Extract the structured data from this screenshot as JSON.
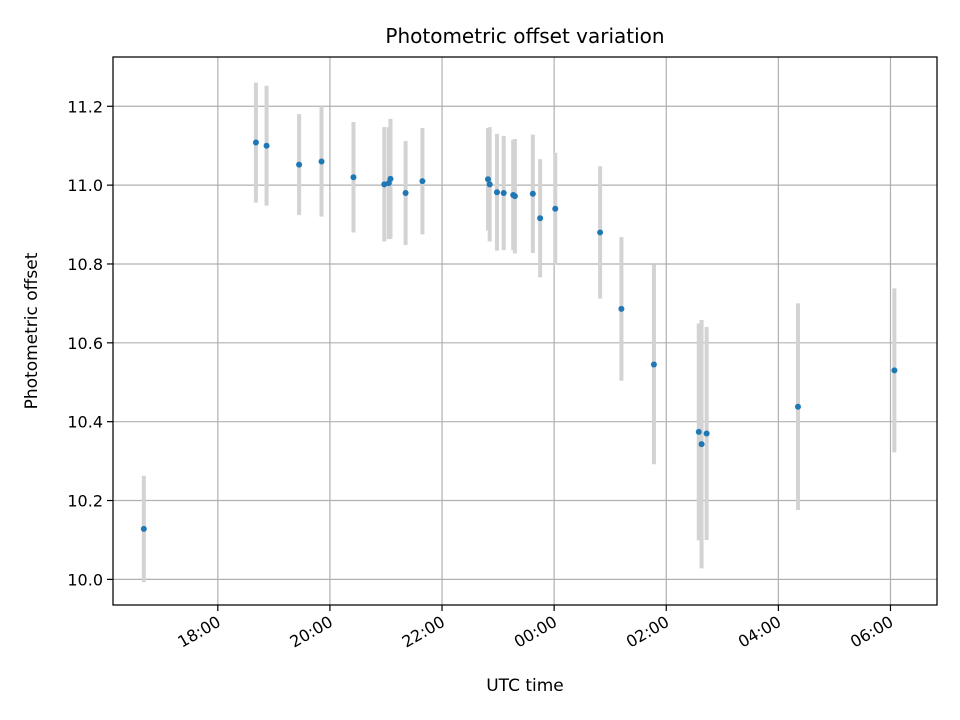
{
  "chart_data": {
    "type": "scatter",
    "title": "Photometric offset variation",
    "xlabel": "UTC time",
    "ylabel": "Photometric offset",
    "x_axis_kind": "time (hours, rolls past midnight)",
    "xlim": [
      16.13,
      30.83
    ],
    "ylim": [
      9.935,
      11.325
    ],
    "grid": true,
    "x_ticks": [
      {
        "value": 18,
        "label": "18:00"
      },
      {
        "value": 20,
        "label": "20:00"
      },
      {
        "value": 22,
        "label": "22:00"
      },
      {
        "value": 24,
        "label": "00:00"
      },
      {
        "value": 26,
        "label": "02:00"
      },
      {
        "value": 28,
        "label": "04:00"
      },
      {
        "value": 30,
        "label": "06:00"
      }
    ],
    "y_ticks": [
      10.0,
      10.2,
      10.4,
      10.6,
      10.8,
      11.0,
      11.2
    ],
    "y_tick_labels": [
      "10.0",
      "10.2",
      "10.4",
      "10.6",
      "10.8",
      "11.0",
      "11.2"
    ],
    "point_color": "#1f77b4",
    "errorbar_color": "#d3d3d3",
    "points": [
      {
        "x": 16.68,
        "y": 10.128,
        "err": 0.135
      },
      {
        "x": 18.68,
        "y": 11.108,
        "err": 0.152
      },
      {
        "x": 18.87,
        "y": 11.1,
        "err": 0.152
      },
      {
        "x": 19.45,
        "y": 11.052,
        "err": 0.128
      },
      {
        "x": 19.85,
        "y": 11.06,
        "err": 0.14
      },
      {
        "x": 20.42,
        "y": 11.02,
        "err": 0.14
      },
      {
        "x": 20.97,
        "y": 11.002,
        "err": 0.145
      },
      {
        "x": 21.05,
        "y": 11.005,
        "err": 0.142
      },
      {
        "x": 21.08,
        "y": 11.016,
        "err": 0.152
      },
      {
        "x": 21.35,
        "y": 10.98,
        "err": 0.132
      },
      {
        "x": 21.65,
        "y": 11.01,
        "err": 0.135
      },
      {
        "x": 22.82,
        "y": 11.015,
        "err": 0.13
      },
      {
        "x": 22.85,
        "y": 11.002,
        "err": 0.145
      },
      {
        "x": 22.98,
        "y": 10.982,
        "err": 0.148
      },
      {
        "x": 23.1,
        "y": 10.98,
        "err": 0.145
      },
      {
        "x": 23.27,
        "y": 10.975,
        "err": 0.14
      },
      {
        "x": 23.3,
        "y": 10.972,
        "err": 0.145
      },
      {
        "x": 23.62,
        "y": 10.978,
        "err": 0.15
      },
      {
        "x": 23.75,
        "y": 10.916,
        "err": 0.15
      },
      {
        "x": 24.02,
        "y": 10.94,
        "err": 0.142
      },
      {
        "x": 24.82,
        "y": 10.88,
        "err": 0.168
      },
      {
        "x": 25.2,
        "y": 10.686,
        "err": 0.182
      },
      {
        "x": 25.78,
        "y": 10.545,
        "err": 0.253
      },
      {
        "x": 26.58,
        "y": 10.374,
        "err": 0.275
      },
      {
        "x": 26.63,
        "y": 10.343,
        "err": 0.315
      },
      {
        "x": 26.72,
        "y": 10.37,
        "err": 0.27
      },
      {
        "x": 28.35,
        "y": 10.438,
        "err": 0.262
      },
      {
        "x": 30.07,
        "y": 10.53,
        "err": 0.208
      }
    ]
  }
}
